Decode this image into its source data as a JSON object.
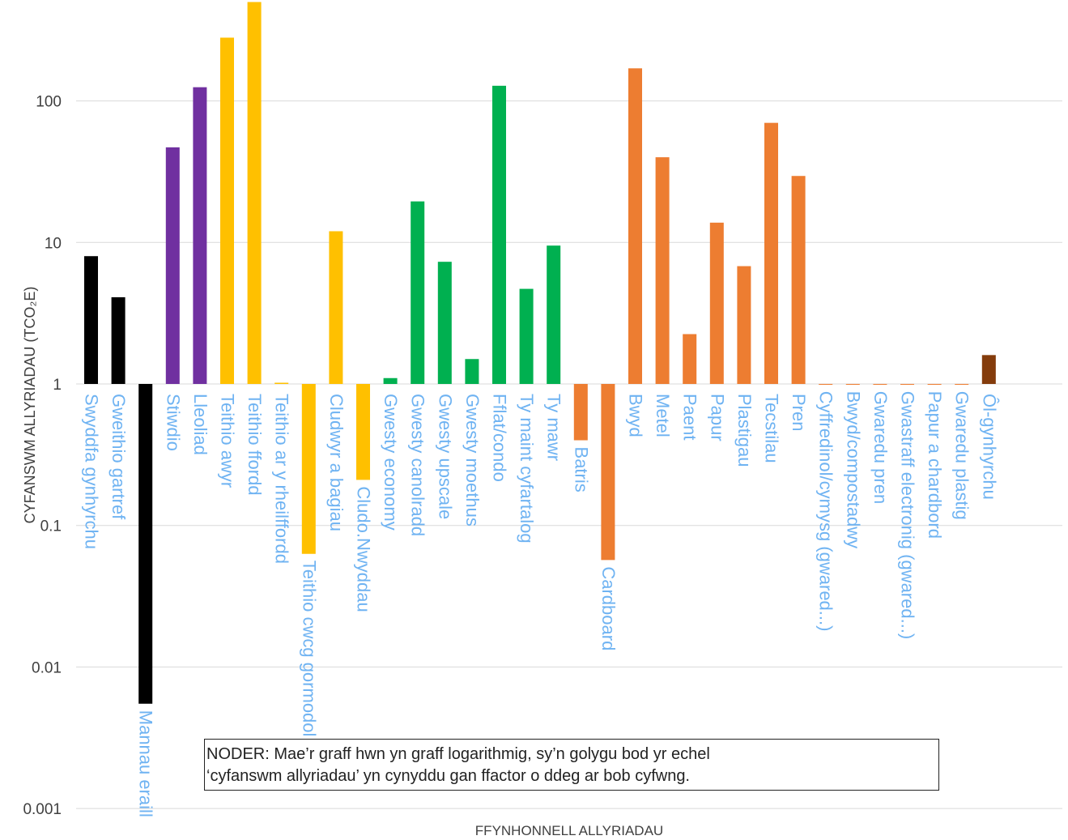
{
  "chart_data": {
    "type": "bar",
    "scale": "log",
    "ylim": [
      0.001,
      500
    ],
    "grid": true,
    "ylabel": "CYFANSWM ALLYRIADAU (TCO₂E)",
    "xlabel": "FFYNHONNELL ALLYRIADAU",
    "yticks": [
      "100",
      "10",
      "1",
      "0.1",
      "0.01",
      "0.001"
    ],
    "ytick_values": [
      100,
      10,
      1,
      0.1,
      0.01,
      0.001
    ],
    "categories": [
      "Swyddfa gynhyrchu",
      "Gweithio gartref",
      "Mannau eraill",
      "Stiwdio",
      "Lleoliad",
      "Teithio awyr",
      "Teithio ffordd",
      "Teithio ar y rheilffordd",
      "Teithio cwcg gormodol",
      "Cludwyr a bagiau",
      "Cludo.Nwyddau",
      "Gwesty economy",
      "Gwesty canolradd",
      "Gwesty upscale",
      "Gwesty moethus",
      "Fflat/condo",
      "Ty maint cyfartalog",
      "Ty mawr",
      "Batris",
      "Cardboard",
      "Bwyd",
      "Metel",
      "Paent",
      "Papur",
      "Plastigau",
      "Tecstilau",
      "Pren",
      "Cyffredinol/cymysg (gwared...)",
      "Bwyd/compostadwy",
      "Gwaredu pren",
      "Gwastraff electronig (gwared...)",
      "Papur a chardbord",
      "Gwaredu plastig",
      "Ôl-gynhyrchu"
    ],
    "values": [
      8,
      4.1,
      0.0055,
      47,
      125,
      280,
      500,
      1.02,
      0.063,
      12,
      0.21,
      1.1,
      19.5,
      7.3,
      1.5,
      128,
      4.7,
      9.5,
      0.4,
      0.057,
      170,
      40,
      2.25,
      13.8,
      6.8,
      70,
      29.5,
      0.99,
      0.99,
      0.99,
      0.99,
      0.99,
      0.99,
      1.6
    ],
    "colors": [
      "#000000",
      "#000000",
      "#000000",
      "#7030a0",
      "#7030a0",
      "#ffc000",
      "#ffc000",
      "#ffc000",
      "#ffc000",
      "#ffc000",
      "#ffc000",
      "#00b050",
      "#00b050",
      "#00b050",
      "#00b050",
      "#00b050",
      "#00b050",
      "#00b050",
      "#ed7d31",
      "#ed7d31",
      "#ed7d31",
      "#ed7d31",
      "#ed7d31",
      "#ed7d31",
      "#ed7d31",
      "#ed7d31",
      "#ed7d31",
      "#ed7d31",
      "#ed7d31",
      "#ed7d31",
      "#ed7d31",
      "#ed7d31",
      "#ed7d31",
      "#843c0c"
    ],
    "label_color": "#6fb3f2",
    "grid_color": "#d9d9d9"
  },
  "note": {
    "line1": "NODER: Mae’r graff hwn yn graff logarithmig, sy’n golygu bod yr echel",
    "line2": "‘cyfanswm allyriadau’ yn cynyddu gan ffactor o ddeg ar bob cyfwng."
  }
}
